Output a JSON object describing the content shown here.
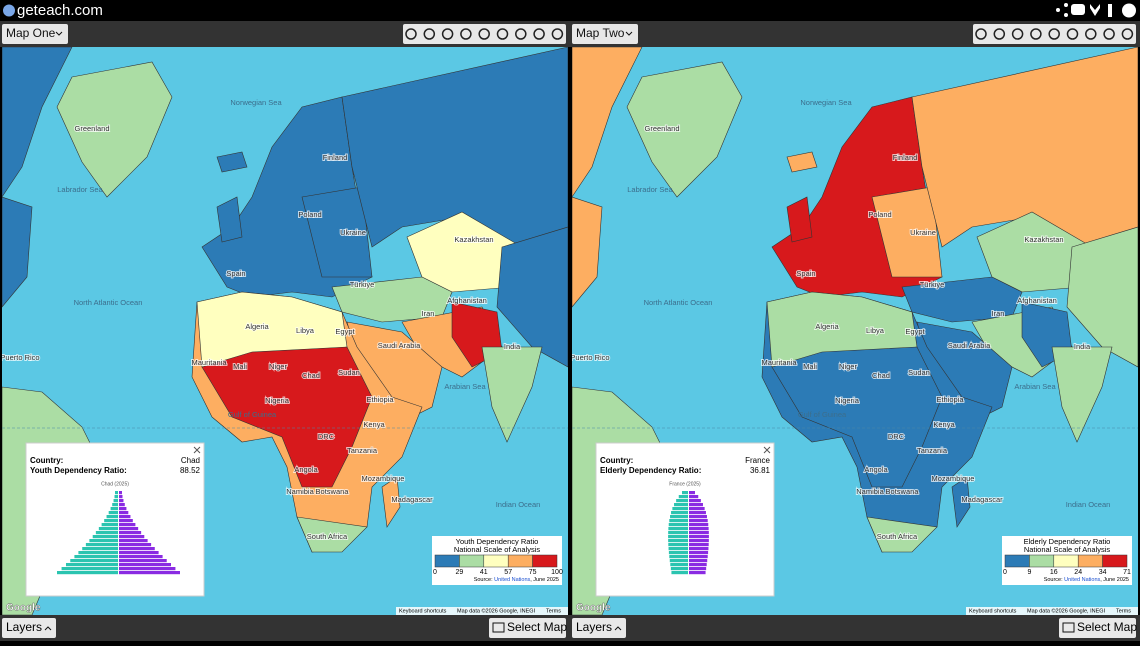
{
  "header": {
    "site": "geteach.com"
  },
  "map_labels": [
    "Greenland",
    "Norwegian Sea",
    "Labrador Sea",
    "North Atlantic Ocean",
    "Finland",
    "Poland",
    "Ukraine",
    "Kazakhstan",
    "Türkiye",
    "Iran",
    "Afghanistan",
    "Algeria",
    "Libya",
    "Egypt",
    "Saudi Arabia",
    "Mali",
    "Niger",
    "Chad",
    "Sudan",
    "Ethiopia",
    "Kenya",
    "DRC",
    "Tanzania",
    "Angola",
    "Namibia",
    "Botswana",
    "Mozambique",
    "Madagascar",
    "South Africa",
    "Gulf of Guinea",
    "Puerto Rico",
    "Arabian Sea",
    "Indian Ocean",
    "India",
    "Spain",
    "Mauritania",
    "Nigeria"
  ],
  "maps": [
    {
      "selector": "Map One",
      "popup": {
        "country_label": "Country:",
        "country": "Chad",
        "metric_label": "Youth Dependency Ratio:",
        "value": 88.52,
        "pyramid_title": "Chad (2025)"
      },
      "legend": {
        "title": "Youth Dependency Ratio",
        "subtitle": "National Scale of Analysis",
        "breaks": [
          0,
          29,
          41,
          57,
          75,
          100
        ],
        "colors": [
          "#2c7bb6",
          "#abdda4",
          "#ffffbf",
          "#fdae61",
          "#d7191c"
        ],
        "source_prefix": "Source: ",
        "source_link": "United Nations",
        "source_suffix": ", June 2025"
      }
    },
    {
      "selector": "Map Two",
      "popup": {
        "country_label": "Country:",
        "country": "France",
        "metric_label": "Elderly Dependency Ratio:",
        "value": 36.81,
        "pyramid_title": "France (2025)"
      },
      "legend": {
        "title": "Elderly Dependency Ratio",
        "subtitle": "National Scale of Analysis",
        "breaks": [
          0,
          9,
          16,
          24,
          34,
          71
        ],
        "colors": [
          "#2c7bb6",
          "#abdda4",
          "#ffffbf",
          "#fdae61",
          "#d7191c"
        ],
        "source_prefix": "Source: ",
        "source_link": "United Nations",
        "source_suffix": ", June 2025"
      }
    }
  ],
  "attribution": {
    "google": "Google",
    "shortcuts": "Keyboard shortcuts",
    "data": "Map data ©2026 Google, INEGI",
    "terms": "Terms"
  },
  "footer": {
    "layers": "Layers",
    "select": "Select Map"
  }
}
